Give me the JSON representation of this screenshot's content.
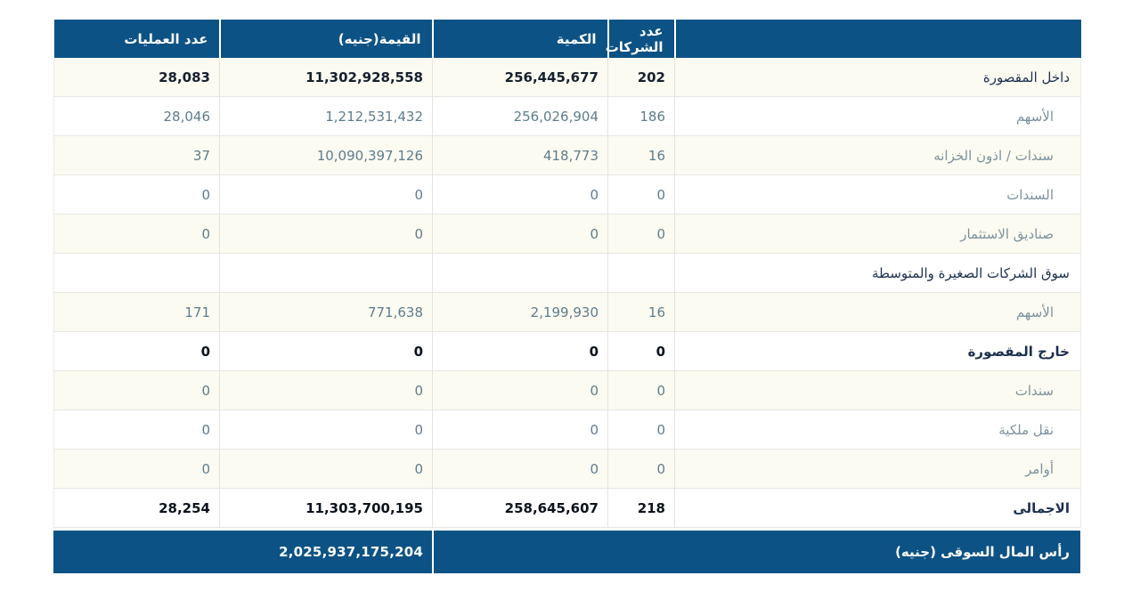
{
  "table": {
    "header": {
      "label": "",
      "companies": "عدد الشركات",
      "quantity": "الكمية",
      "value": "القيمة(جنيه)",
      "operations": "عدد العمليات"
    },
    "rows": [
      {
        "label": "داخل المقصورة",
        "companies": "202",
        "quantity": "256,445,677",
        "value": "11,302,928,558",
        "operations": "28,083"
      },
      {
        "label": "الأسهم",
        "companies": "186",
        "quantity": "256,026,904",
        "value": "1,212,531,432",
        "operations": "28,046"
      },
      {
        "label": "سندات / اذون الخزانه",
        "companies": "16",
        "quantity": "418,773",
        "value": "10,090,397,126",
        "operations": "37"
      },
      {
        "label": "السندات",
        "companies": "0",
        "quantity": "0",
        "value": "0",
        "operations": "0"
      },
      {
        "label": "صناديق الاستثمار",
        "companies": "0",
        "quantity": "0",
        "value": "0",
        "operations": "0"
      },
      {
        "label": "سوق الشركات الصغيرة والمتوسطة",
        "companies": "",
        "quantity": "",
        "value": "",
        "operations": ""
      },
      {
        "label": "الأسهم",
        "companies": "16",
        "quantity": "2,199,930",
        "value": "771,638",
        "operations": "171"
      },
      {
        "label": "خارج المقصورة",
        "companies": "0",
        "quantity": "0",
        "value": "0",
        "operations": "0"
      },
      {
        "label": "سندات",
        "companies": "0",
        "quantity": "0",
        "value": "0",
        "operations": "0"
      },
      {
        "label": "نقل ملكية",
        "companies": "0",
        "quantity": "0",
        "value": "0",
        "operations": "0"
      },
      {
        "label": "أوامر",
        "companies": "0",
        "quantity": "0",
        "value": "0",
        "operations": "0"
      },
      {
        "label": "الاجمالى",
        "companies": "218",
        "quantity": "258,645,607",
        "value": "11,303,700,195",
        "operations": "28,254"
      }
    ],
    "footer": {
      "label": "رأس المال السوقى (جنيه)",
      "value": "2,025,937,175,204"
    }
  },
  "colors": {
    "header_bg": "#0D5285",
    "row_alt_bg": "#FCFBF2",
    "sub_text": "#5E7C8C",
    "main_text": "#1C3050"
  }
}
